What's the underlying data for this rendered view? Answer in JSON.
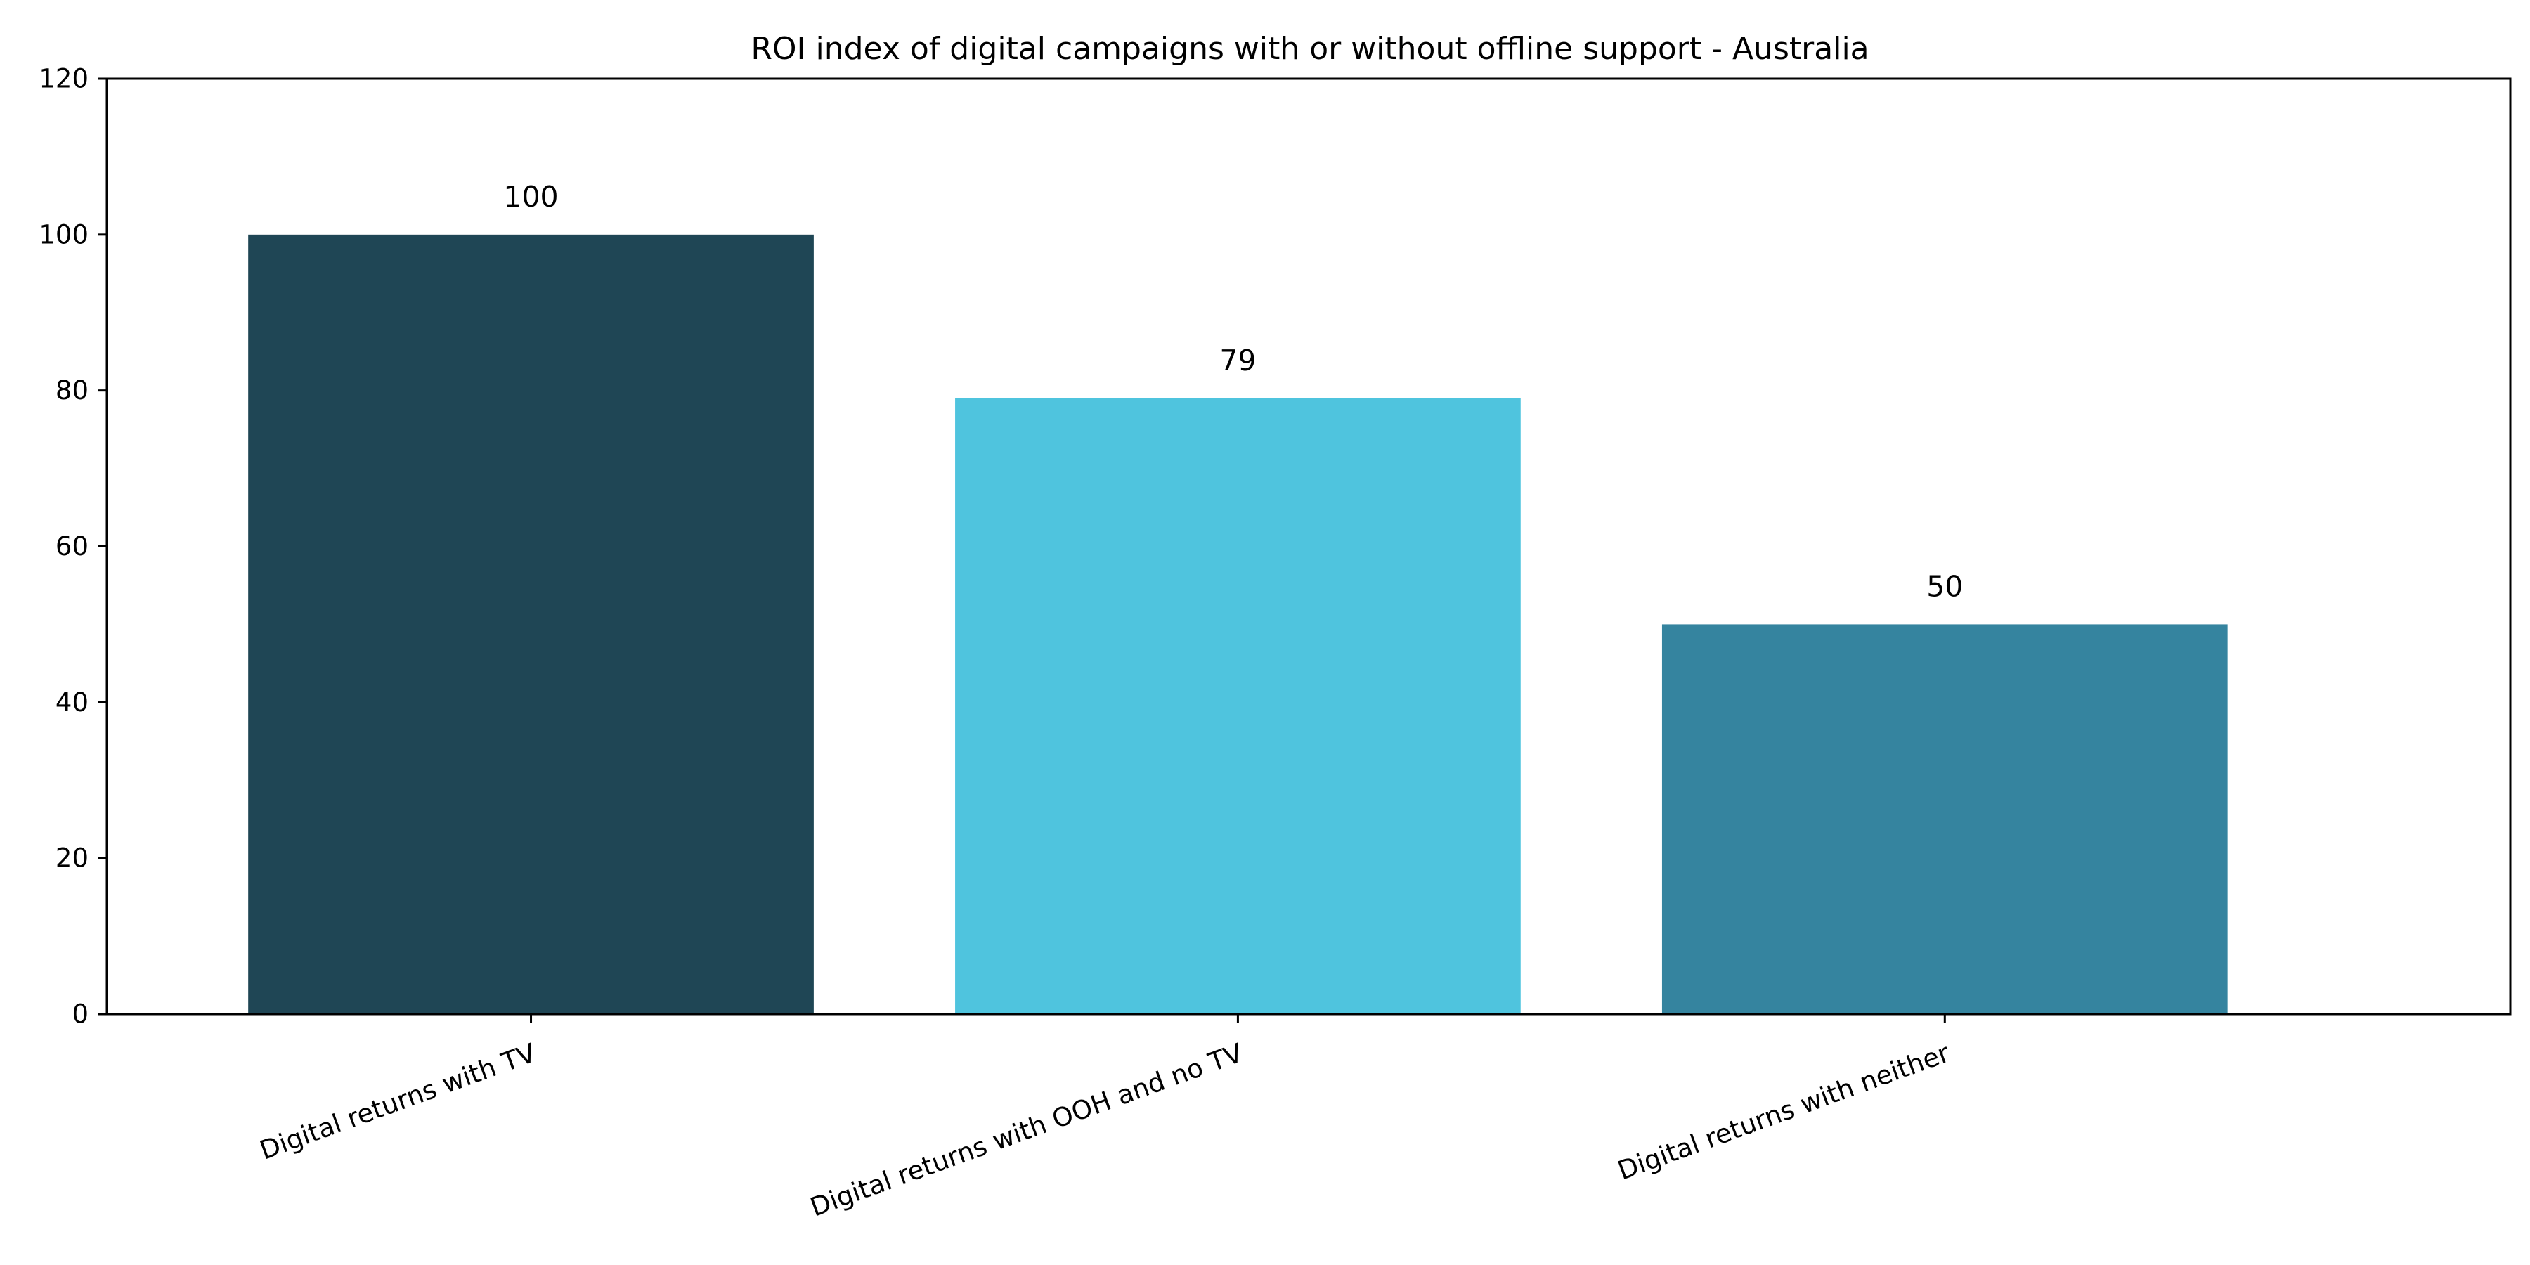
{
  "chart_data": {
    "type": "bar",
    "title": "ROI index of digital campaigns with or without offline support - Australia",
    "xlabel": "",
    "ylabel": "",
    "categories": [
      "Digital returns with TV",
      "Digital returns with OOH and no TV",
      "Digital returns with neither"
    ],
    "values": [
      100,
      79,
      50
    ],
    "data_labels": [
      "100",
      "79",
      "50"
    ],
    "colors": [
      "#1f4655",
      "#4fc4de",
      "#35849f"
    ],
    "ylim": [
      0,
      120
    ],
    "yticks": [
      "0",
      "20",
      "40",
      "60",
      "80",
      "100",
      "120"
    ],
    "grid": false,
    "legend": "none"
  }
}
